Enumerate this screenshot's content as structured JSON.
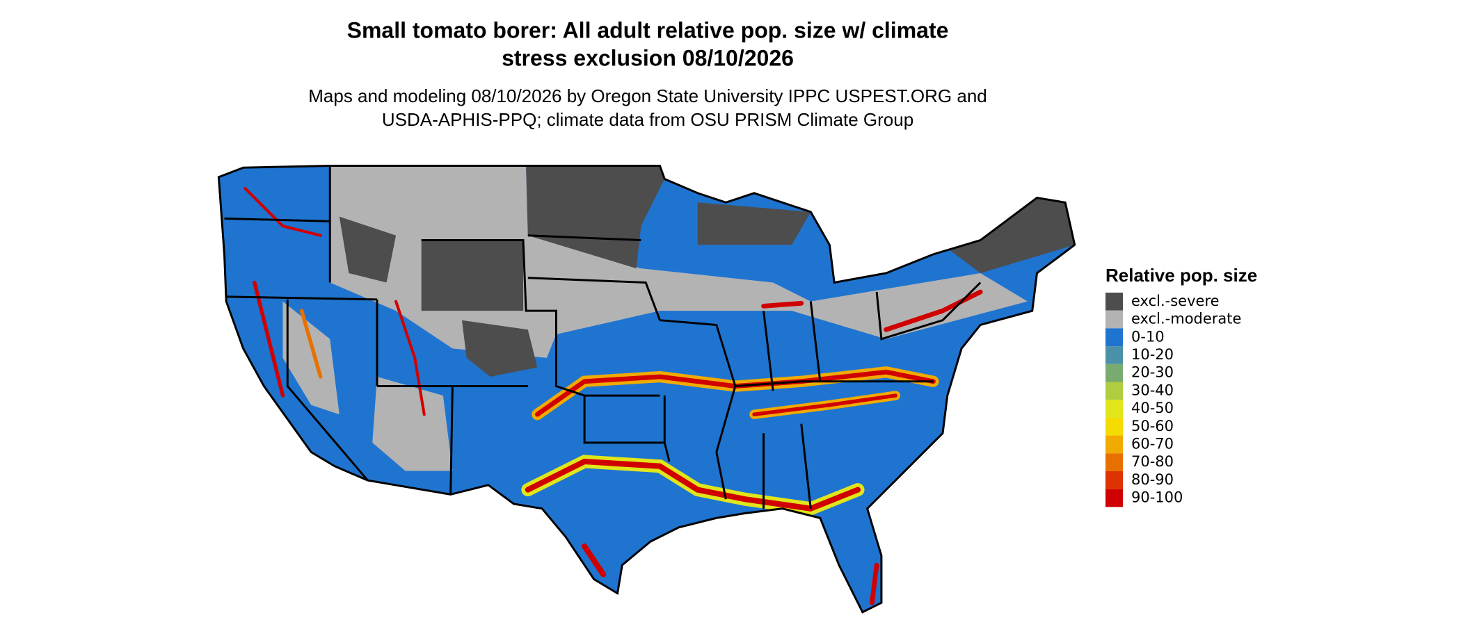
{
  "title_lines": [
    "Small tomato borer: All adult relative pop. size w/ climate",
    "stress exclusion 08/10/2026"
  ],
  "subtitle_lines": [
    "Maps and modeling 08/10/2026 by Oregon State University IPPC USPEST.ORG and",
    "USDA-APHIS-PPQ; climate data from OSU PRISM Climate Group"
  ],
  "legend": {
    "title": "Relative pop. size",
    "items": [
      {
        "label": "excl.-severe",
        "color": "#4d4d4d"
      },
      {
        "label": "excl.-moderate",
        "color": "#b3b3b3"
      },
      {
        "label": "0-10",
        "color": "#1f74d0"
      },
      {
        "label": "10-20",
        "color": "#4a90a8"
      },
      {
        "label": "20-30",
        "color": "#78ab70"
      },
      {
        "label": "30-40",
        "color": "#b0cc40"
      },
      {
        "label": "40-50",
        "color": "#e0e61a"
      },
      {
        "label": "50-60",
        "color": "#f5dc00"
      },
      {
        "label": "60-70",
        "color": "#f0aa00"
      },
      {
        "label": "70-80",
        "color": "#e87000"
      },
      {
        "label": "80-90",
        "color": "#dd3300"
      },
      {
        "label": "90-100",
        "color": "#d00000"
      }
    ]
  }
}
